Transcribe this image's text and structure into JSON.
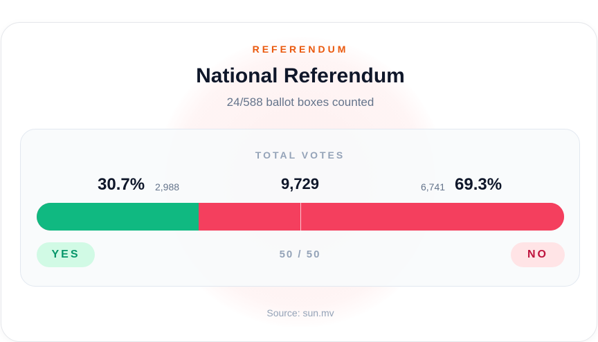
{
  "header": {
    "kicker": "REFERENDUM",
    "title": "National Referendum",
    "subtitle": "24/588 ballot boxes counted"
  },
  "panel": {
    "label": "TOTAL VOTES",
    "total": "9,729",
    "split": "50 / 50",
    "options": [
      {
        "name": "YES",
        "value": 30.7,
        "value_label": "30.7%",
        "votes": "2,988",
        "color": "#10b981"
      },
      {
        "name": "NO",
        "value": 69.3,
        "value_label": "69.3%",
        "votes": "6,741",
        "color": "#f43f5e"
      }
    ]
  },
  "footer": {
    "source": "Source: sun.mv"
  }
}
